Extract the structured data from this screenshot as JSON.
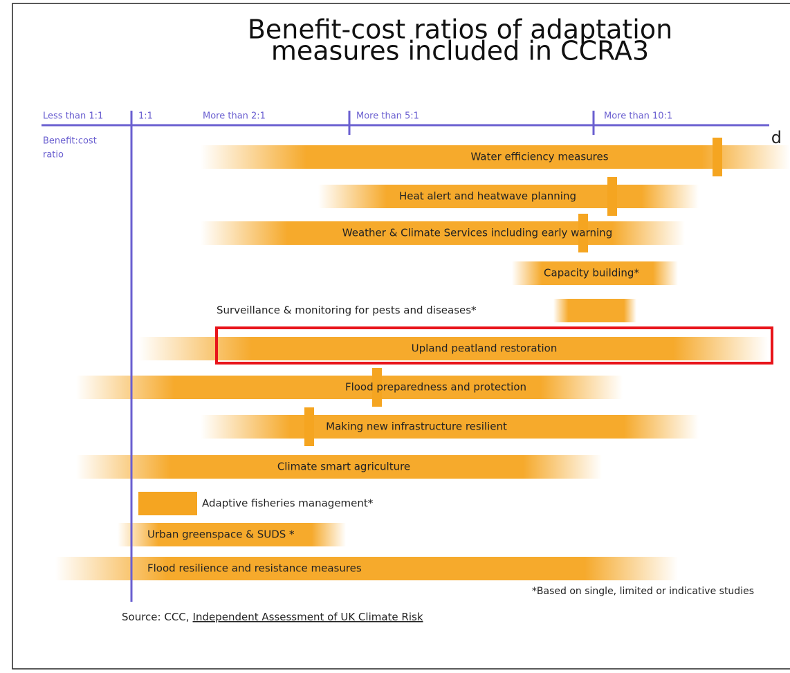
{
  "title": [
    "Benefit-cost ratios of adaptation",
    "measures included in CCRA3"
  ],
  "side_fragment": "d",
  "axis": {
    "labels": [
      "Less than 1:1",
      "1:1",
      "More than 2:1",
      "More than 5:1",
      "More than 10:1"
    ],
    "name": [
      "Benefit:cost",
      "ratio"
    ]
  },
  "rows": [
    "Water efficiency measures",
    "Heat alert and heatwave planning",
    "Weather & Climate Services including early warning",
    "Capacity building*",
    "Surveillance & monitoring for pests and diseases*",
    "Upland peatland restoration",
    "Flood preparedness and protection",
    "Making new infrastructure resilient",
    "Climate smart agriculture",
    "Adaptive fisheries management*",
    "Urban greenspace & SUDS *",
    "Flood resilience and resistance measures"
  ],
  "footnote": "*Based on single, limited or indicative studies",
  "source": {
    "prefix": "Source: CCC,",
    "link": "Independent Assessment of UK Climate Risk"
  }
}
